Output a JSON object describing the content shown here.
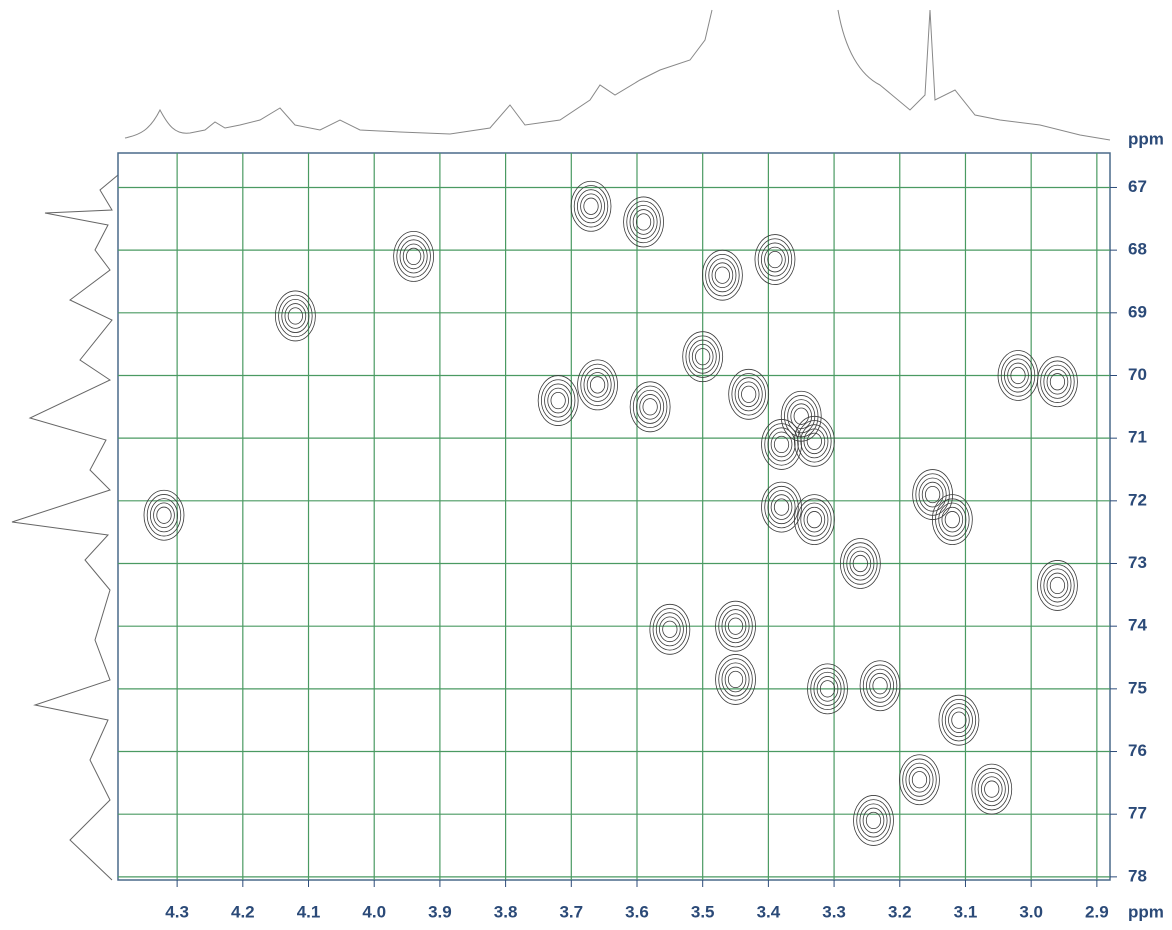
{
  "chart_data": {
    "type": "contour",
    "x_unit": "ppm",
    "y_unit": "ppm",
    "x": [
      4.32,
      4.12,
      3.94,
      3.67,
      3.59,
      3.47,
      3.39,
      3.72,
      3.66,
      3.58,
      3.5,
      3.43,
      3.35,
      3.38,
      3.33,
      3.38,
      3.33,
      3.26,
      3.15,
      3.12,
      3.02,
      2.96,
      2.96,
      3.55,
      3.45,
      3.45,
      3.31,
      3.23,
      3.11,
      3.06,
      3.24,
      3.17
    ],
    "y": [
      72.23,
      69.05,
      68.1,
      67.3,
      67.55,
      68.4,
      68.15,
      70.4,
      70.15,
      70.5,
      69.7,
      70.3,
      70.65,
      71.1,
      71.05,
      72.1,
      72.3,
      73.0,
      71.9,
      72.3,
      70.0,
      70.1,
      73.35,
      74.05,
      74.0,
      74.85,
      75.0,
      74.95,
      75.5,
      76.6,
      77.1,
      76.45
    ],
    "xlim": [
      4.39,
      2.88
    ],
    "ylim": [
      66.45,
      78.05
    ],
    "xticks": [
      4.3,
      4.2,
      4.1,
      {
        "value": 4.0,
        "label": "4.0"
      },
      3.9,
      3.8,
      3.7,
      3.6,
      3.5,
      3.4,
      3.3,
      3.2,
      3.1,
      {
        "value": 3.0,
        "label": "3.0"
      },
      2.9
    ],
    "yticks": [
      67,
      68,
      69,
      70,
      71,
      72,
      73,
      74,
      75,
      76,
      77,
      78
    ],
    "grid": true,
    "grid_color": "#4a9a62",
    "color": "#3a3a3a",
    "label_color": "#2b4a78"
  }
}
